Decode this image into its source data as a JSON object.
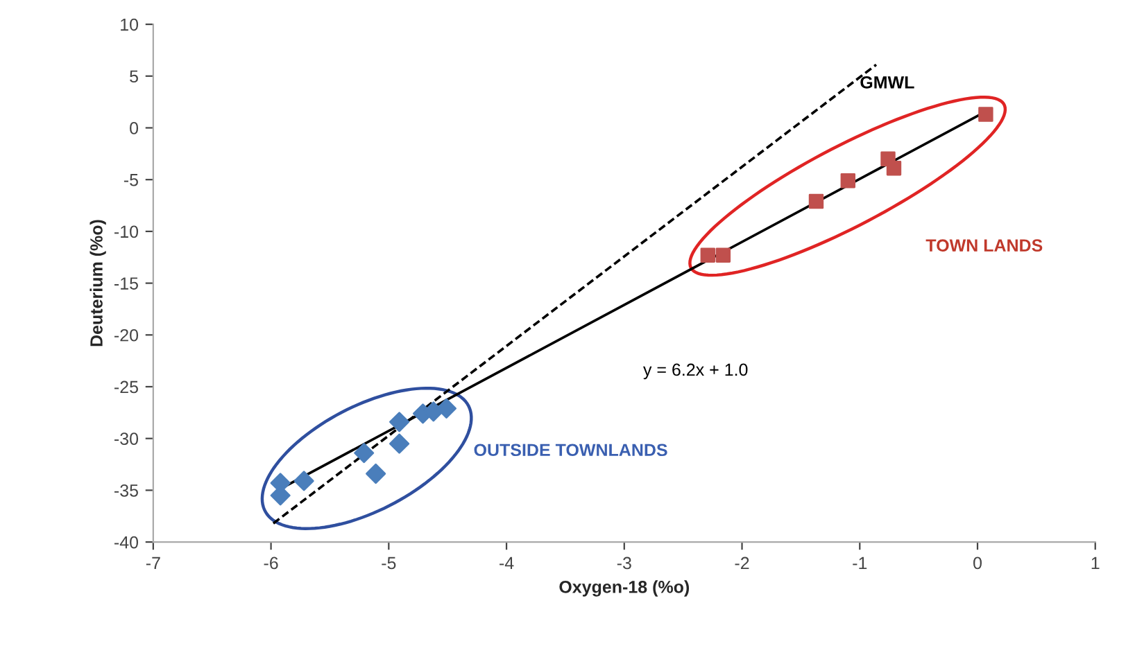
{
  "chart_data": {
    "type": "scatter",
    "xlabel": "Oxygen-18 (%o)",
    "ylabel": "Deuterium (%o)",
    "xlim": [
      -7,
      1
    ],
    "xticks": [
      -7,
      -6,
      -5,
      -4,
      -3,
      -2,
      -1,
      0,
      1
    ],
    "ylim": [
      -40,
      10
    ],
    "yticks": [
      -40,
      -35,
      -30,
      -25,
      -20,
      -15,
      -10,
      -5,
      0,
      5,
      10
    ],
    "grid": false,
    "series": [
      {
        "type": "scatter",
        "color": "#4a7ebb",
        "marker": "diamond",
        "x": [
          -5.92,
          -5.92,
          -5.72,
          -5.21,
          -5.11,
          -4.91,
          -4.91,
          -4.71,
          -4.62,
          -4.51
        ],
        "values": [
          -34.3,
          -35.5,
          -34.1,
          -31.4,
          -33.4,
          -28.4,
          -30.5,
          -27.6,
          -27.4,
          -27.1
        ]
      },
      {
        "type": "scatter",
        "color": "#c0504d",
        "marker": "square",
        "x": [
          0.07,
          -0.76,
          -0.71,
          -1.1,
          -1.37,
          -2.29,
          -2.16
        ],
        "values": [
          1.3,
          -3.0,
          -3.9,
          -5.1,
          -7.1,
          -12.3,
          -12.3
        ]
      },
      {
        "type": "line",
        "color": "#000000",
        "line_style": "solid",
        "x": [
          -5.91,
          0.09
        ],
        "values": [
          -34.8,
          1.7
        ]
      },
      {
        "type": "line",
        "color": "#000000",
        "line_style": "dashed",
        "x": [
          -5.98,
          -0.86
        ],
        "values": [
          -38.2,
          6.1
        ]
      }
    ],
    "annotations": [
      "GMWL",
      "y = 6.2x + 1.0",
      "TOWN LANDS",
      "OUTSIDE TOWNLANDS"
    ]
  }
}
